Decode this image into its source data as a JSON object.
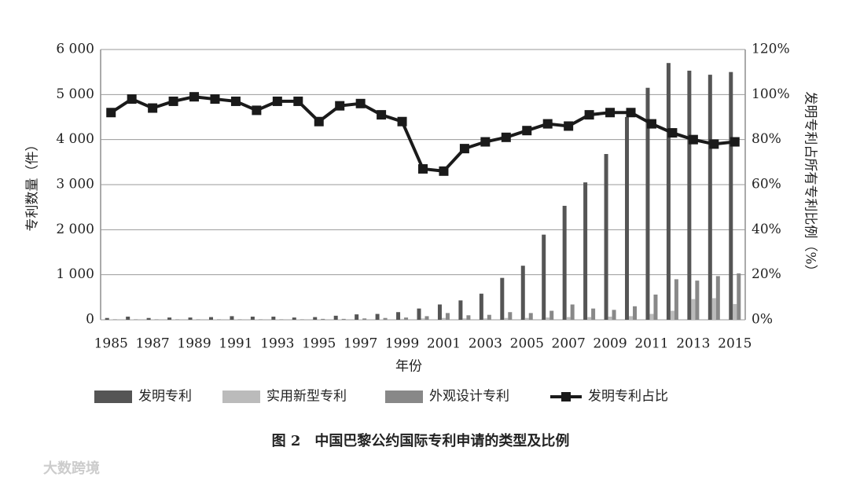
{
  "chart_data": {
    "type": "bar-line",
    "x_label": "年份",
    "y_label": "专利数量（件）",
    "y2_label": "发明专利占所有专利比例（%）",
    "caption": "图 2　中国巴黎公约国际专利申请的类型及比例",
    "watermark": "大数跨境",
    "categories": [
      "1985",
      null,
      "1987",
      null,
      "1989",
      null,
      "1991",
      null,
      "1993",
      null,
      "1995",
      null,
      "1997",
      null,
      "1999",
      null,
      "2001",
      null,
      "2003",
      null,
      "2005",
      null,
      "2007",
      null,
      "2009",
      null,
      "2011",
      null,
      "2013",
      null,
      "2015"
    ],
    "series": [
      {
        "name": "发明专利",
        "color": "#555555",
        "type": "bar",
        "values": [
          40,
          70,
          40,
          50,
          50,
          60,
          80,
          70,
          70,
          50,
          60,
          90,
          120,
          130,
          170,
          250,
          340,
          430,
          580,
          930,
          1200,
          1890,
          2530,
          3050,
          3680,
          4500,
          5150,
          5700,
          5530,
          5440,
          5500
        ]
      },
      {
        "name": "实用新型专利",
        "color": "#bbbbbb",
        "type": "bar",
        "values": [
          5,
          5,
          5,
          5,
          5,
          5,
          5,
          5,
          5,
          5,
          5,
          10,
          10,
          10,
          20,
          30,
          40,
          30,
          30,
          40,
          40,
          50,
          60,
          60,
          70,
          80,
          130,
          200,
          460,
          480,
          350
        ]
      },
      {
        "name": "外观设计专利",
        "color": "#888888",
        "type": "bar",
        "values": [
          10,
          10,
          10,
          10,
          10,
          10,
          10,
          10,
          10,
          10,
          20,
          20,
          30,
          40,
          50,
          80,
          150,
          100,
          110,
          170,
          150,
          200,
          340,
          250,
          220,
          300,
          560,
          900,
          870,
          970,
          1030
        ]
      },
      {
        "name": "发明专利占比",
        "color": "#1a1a1a",
        "type": "line",
        "axis": "y2",
        "values": [
          92,
          98,
          94,
          97,
          99,
          98,
          97,
          93,
          97,
          97,
          88,
          95,
          96,
          91,
          88,
          67,
          66,
          76,
          79,
          81,
          84,
          87,
          86,
          91,
          92,
          92,
          87,
          83,
          80,
          78,
          79
        ]
      }
    ],
    "ylim": [
      0,
      6000
    ],
    "yticks": [
      0,
      {
        "value": 1000,
        "label": "1 000"
      },
      {
        "value": 2000,
        "label": "2 000"
      },
      {
        "value": 3000,
        "label": "3 000"
      },
      {
        "value": 4000,
        "label": "4 000"
      },
      {
        "value": 5000,
        "label": "5 000"
      },
      {
        "value": 6000,
        "label": "6 000"
      }
    ],
    "y2lim": [
      0,
      120
    ],
    "y2ticks": [
      {
        "value": 0,
        "label": "0%"
      },
      {
        "value": 20,
        "label": "20%"
      },
      {
        "value": 40,
        "label": "40%"
      },
      {
        "value": 60,
        "label": "60%"
      },
      {
        "value": 80,
        "label": "80%"
      },
      {
        "value": 100,
        "label": "100%"
      },
      {
        "value": 120,
        "label": "120%"
      }
    ],
    "grid": true
  }
}
